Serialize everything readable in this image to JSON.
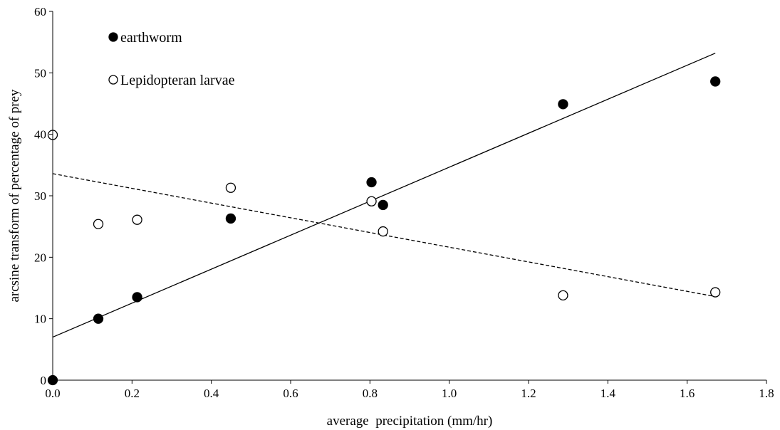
{
  "chart_data": {
    "type": "scatter",
    "xlabel": "average  precipitation (mm/hr)",
    "ylabel": "arcsine transform of percentage of prey",
    "xlim": [
      0,
      1.8
    ],
    "ylim": [
      0,
      60
    ],
    "x_ticks": [
      "0.0",
      "0.2",
      "0.4",
      "0.6",
      "0.8",
      "1.0",
      "1.2",
      "1.4",
      "1.6",
      "1.8"
    ],
    "y_ticks": [
      "0",
      "10",
      "20",
      "30",
      "40",
      "50",
      "60"
    ],
    "grid": false,
    "legend_position": "top-left",
    "series": [
      {
        "name": "earthworm",
        "marker": "filled-circle",
        "color": "#000000",
        "points": [
          {
            "x": 0.0,
            "y": 0.0
          },
          {
            "x": 0.115,
            "y": 10.0
          },
          {
            "x": 0.213,
            "y": 13.5
          },
          {
            "x": 0.449,
            "y": 26.3
          },
          {
            "x": 0.804,
            "y": 32.2
          },
          {
            "x": 0.833,
            "y": 28.5
          },
          {
            "x": 1.287,
            "y": 44.9
          },
          {
            "x": 1.671,
            "y": 48.6
          }
        ],
        "trendline": {
          "style": "solid",
          "x": [
            0.0,
            1.671
          ],
          "y": [
            7.0,
            53.2
          ]
        }
      },
      {
        "name": "Lepidopteran larvae",
        "marker": "open-circle",
        "color": "#000000",
        "points": [
          {
            "x": 0.0,
            "y": 39.9
          },
          {
            "x": 0.115,
            "y": 25.4
          },
          {
            "x": 0.213,
            "y": 26.1
          },
          {
            "x": 0.449,
            "y": 31.3
          },
          {
            "x": 0.804,
            "y": 29.1
          },
          {
            "x": 0.833,
            "y": 24.2
          },
          {
            "x": 1.287,
            "y": 13.8
          },
          {
            "x": 1.671,
            "y": 14.3
          }
        ],
        "trendline": {
          "style": "dashed",
          "x": [
            0.0,
            1.671
          ],
          "y": [
            33.6,
            13.6
          ]
        }
      }
    ]
  }
}
